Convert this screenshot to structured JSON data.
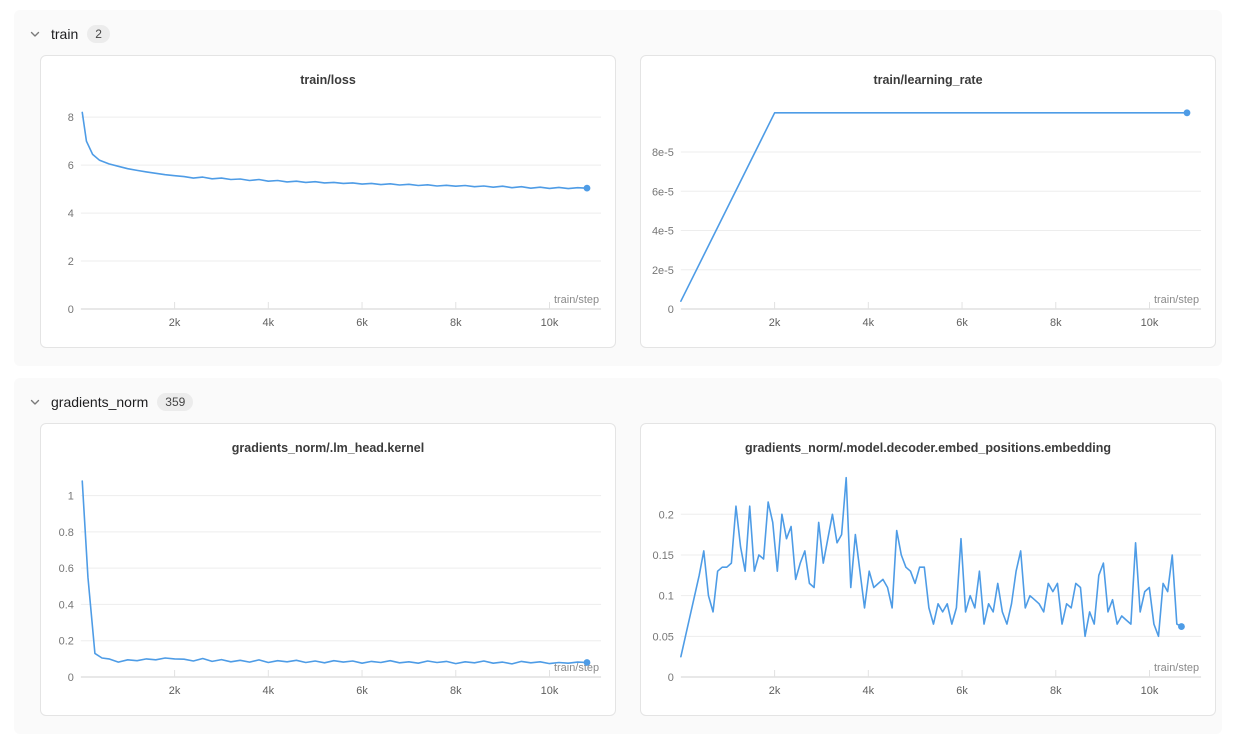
{
  "colors": {
    "line": "#4e9ce6",
    "section_bg": "#fafafa",
    "card_border": "#e4e4e4",
    "gridline": "#ededed",
    "axis_line": "#d9d9d9",
    "y_tick_text": "#767676",
    "x_tick_text": "#5f5f5f",
    "xlabel_text": "#8a8a8a"
  },
  "sections": [
    {
      "label": "train",
      "count": "2",
      "chevron": "chevron-down"
    },
    {
      "label": "gradients_norm",
      "count": "359",
      "chevron": "chevron-down"
    }
  ],
  "chart_data": [
    {
      "type": "line",
      "title": "train/loss",
      "xlabel": "train/step",
      "legend_position": "none",
      "grid": true,
      "xlim": [
        0,
        11100
      ],
      "ylim": [
        0,
        8.55
      ],
      "x_ticks": [
        {
          "v": 2000,
          "label": "2k"
        },
        {
          "v": 4000,
          "label": "4k"
        },
        {
          "v": 6000,
          "label": "6k"
        },
        {
          "v": 8000,
          "label": "8k"
        },
        {
          "v": 10000,
          "label": "10k"
        }
      ],
      "y_ticks": [
        {
          "v": 0,
          "label": "0"
        },
        {
          "v": 2,
          "label": "2"
        },
        {
          "v": 4,
          "label": "4"
        },
        {
          "v": 6,
          "label": "6"
        },
        {
          "v": 8,
          "label": "8"
        }
      ],
      "endpoint_dot": true,
      "x": [
        30,
        120,
        250,
        400,
        600,
        800,
        1000,
        1200,
        1400,
        1600,
        1800,
        2000,
        2200,
        2400,
        2600,
        2800,
        3000,
        3200,
        3400,
        3600,
        3800,
        4000,
        4200,
        4400,
        4600,
        4800,
        5000,
        5200,
        5400,
        5600,
        5800,
        6000,
        6200,
        6400,
        6600,
        6800,
        7000,
        7200,
        7400,
        7600,
        7800,
        8000,
        8200,
        8400,
        8600,
        8800,
        9000,
        9200,
        9400,
        9600,
        9800,
        10000,
        10200,
        10400,
        10600,
        10800
      ],
      "y": [
        8.2,
        7.0,
        6.45,
        6.2,
        6.05,
        5.95,
        5.85,
        5.78,
        5.72,
        5.66,
        5.6,
        5.56,
        5.52,
        5.46,
        5.5,
        5.43,
        5.46,
        5.4,
        5.42,
        5.36,
        5.4,
        5.33,
        5.36,
        5.3,
        5.33,
        5.28,
        5.31,
        5.26,
        5.28,
        5.24,
        5.26,
        5.21,
        5.24,
        5.19,
        5.22,
        5.17,
        5.2,
        5.15,
        5.18,
        5.13,
        5.16,
        5.12,
        5.15,
        5.1,
        5.13,
        5.08,
        5.12,
        5.06,
        5.1,
        5.04,
        5.08,
        5.03,
        5.07,
        5.02,
        5.06,
        5.04
      ]
    },
    {
      "type": "line",
      "title": "train/learning_rate",
      "xlabel": "train/step",
      "legend_position": "none",
      "grid": true,
      "xlim": [
        0,
        11100
      ],
      "ylim": [
        0,
        0.0001045
      ],
      "x_ticks": [
        {
          "v": 2000,
          "label": "2k"
        },
        {
          "v": 4000,
          "label": "4k"
        },
        {
          "v": 6000,
          "label": "6k"
        },
        {
          "v": 8000,
          "label": "8k"
        },
        {
          "v": 10000,
          "label": "10k"
        }
      ],
      "y_ticks": [
        {
          "v": 0,
          "label": "0"
        },
        {
          "v": 2e-05,
          "label": "2e-5"
        },
        {
          "v": 4e-05,
          "label": "4e-5"
        },
        {
          "v": 6e-05,
          "label": "6e-5"
        },
        {
          "v": 8e-05,
          "label": "8e-5"
        }
      ],
      "endpoint_dot": true,
      "x": [
        0,
        2000,
        10800
      ],
      "y": [
        4e-06,
        0.0001,
        0.0001
      ]
    },
    {
      "type": "line",
      "title": "gradients_norm/.lm_head.kernel",
      "xlabel": "train/step",
      "legend_position": "none",
      "grid": true,
      "xlim": [
        0,
        11100
      ],
      "ylim": [
        0,
        1.13
      ],
      "x_ticks": [
        {
          "v": 2000,
          "label": "2k"
        },
        {
          "v": 4000,
          "label": "4k"
        },
        {
          "v": 6000,
          "label": "6k"
        },
        {
          "v": 8000,
          "label": "8k"
        },
        {
          "v": 10000,
          "label": "10k"
        }
      ],
      "y_ticks": [
        {
          "v": 0,
          "label": "0"
        },
        {
          "v": 0.2,
          "label": "0.2"
        },
        {
          "v": 0.4,
          "label": "0.4"
        },
        {
          "v": 0.6,
          "label": "0.6"
        },
        {
          "v": 0.8,
          "label": "0.8"
        },
        {
          "v": 1,
          "label": "1"
        }
      ],
      "endpoint_dot": true,
      "x": [
        30,
        150,
        300,
        450,
        600,
        800,
        1000,
        1200,
        1400,
        1600,
        1800,
        2000,
        2200,
        2400,
        2600,
        2800,
        3000,
        3200,
        3400,
        3600,
        3800,
        4000,
        4200,
        4400,
        4600,
        4800,
        5000,
        5200,
        5400,
        5600,
        5800,
        6000,
        6200,
        6400,
        6600,
        6800,
        7000,
        7200,
        7400,
        7600,
        7800,
        8000,
        8200,
        8400,
        8600,
        8800,
        9000,
        9200,
        9400,
        9600,
        9800,
        10000,
        10200,
        10400,
        10600,
        10800
      ],
      "y": [
        1.08,
        0.55,
        0.13,
        0.105,
        0.1,
        0.082,
        0.095,
        0.09,
        0.1,
        0.095,
        0.105,
        0.1,
        0.098,
        0.088,
        0.102,
        0.086,
        0.096,
        0.084,
        0.092,
        0.082,
        0.094,
        0.08,
        0.09,
        0.084,
        0.092,
        0.08,
        0.088,
        0.078,
        0.09,
        0.082,
        0.088,
        0.076,
        0.086,
        0.08,
        0.09,
        0.078,
        0.084,
        0.076,
        0.088,
        0.08,
        0.086,
        0.074,
        0.084,
        0.078,
        0.088,
        0.076,
        0.082,
        0.072,
        0.086,
        0.078,
        0.084,
        0.074,
        0.08,
        0.076,
        0.082,
        0.08
      ]
    },
    {
      "type": "line",
      "title": "gradients_norm/.model.decoder.embed_positions.embedding",
      "xlabel": "train/step",
      "legend_position": "none",
      "grid": true,
      "xlim": [
        0,
        11100
      ],
      "ylim": [
        0,
        0.252
      ],
      "x_ticks": [
        {
          "v": 2000,
          "label": "2k"
        },
        {
          "v": 4000,
          "label": "4k"
        },
        {
          "v": 6000,
          "label": "6k"
        },
        {
          "v": 8000,
          "label": "8k"
        },
        {
          "v": 10000,
          "label": "10k"
        }
      ],
      "y_ticks": [
        {
          "v": 0,
          "label": "0"
        },
        {
          "v": 0.05,
          "label": "0.05"
        },
        {
          "v": 0.1,
          "label": "0.1"
        },
        {
          "v": 0.15,
          "label": "0.15"
        },
        {
          "v": 0.2,
          "label": "0.2"
        }
      ],
      "endpoint_dot": true,
      "x_start": 0,
      "x_step": 98,
      "y": [
        0.025,
        0.05,
        0.075,
        0.1,
        0.125,
        0.155,
        0.1,
        0.08,
        0.13,
        0.135,
        0.135,
        0.14,
        0.21,
        0.16,
        0.13,
        0.21,
        0.13,
        0.15,
        0.145,
        0.215,
        0.19,
        0.13,
        0.2,
        0.17,
        0.185,
        0.12,
        0.14,
        0.155,
        0.115,
        0.11,
        0.19,
        0.14,
        0.17,
        0.2,
        0.165,
        0.175,
        0.245,
        0.11,
        0.175,
        0.13,
        0.085,
        0.13,
        0.11,
        0.115,
        0.12,
        0.11,
        0.085,
        0.18,
        0.15,
        0.135,
        0.13,
        0.115,
        0.135,
        0.135,
        0.085,
        0.065,
        0.09,
        0.08,
        0.09,
        0.065,
        0.085,
        0.17,
        0.08,
        0.1,
        0.085,
        0.13,
        0.065,
        0.09,
        0.08,
        0.115,
        0.08,
        0.065,
        0.09,
        0.13,
        0.155,
        0.085,
        0.1,
        0.095,
        0.09,
        0.08,
        0.115,
        0.105,
        0.115,
        0.065,
        0.09,
        0.085,
        0.115,
        0.11,
        0.05,
        0.08,
        0.065,
        0.125,
        0.14,
        0.08,
        0.095,
        0.065,
        0.075,
        0.07,
        0.065,
        0.165,
        0.08,
        0.105,
        0.11,
        0.065,
        0.05,
        0.115,
        0.105,
        0.15,
        0.065,
        0.062
      ]
    }
  ]
}
